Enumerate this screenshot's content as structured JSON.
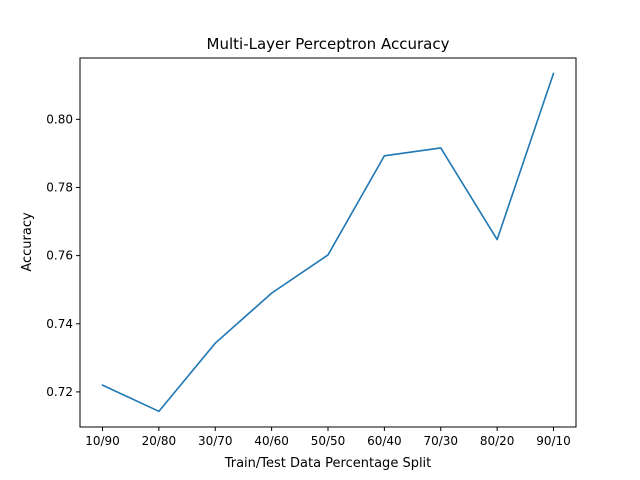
{
  "chart_data": {
    "type": "line",
    "title": "Multi-Layer Perceptron Accuracy",
    "xlabel": "Train/Test Data Percentage Split",
    "ylabel": "Accuracy",
    "categories": [
      "10/90",
      "20/80",
      "30/70",
      "40/60",
      "50/50",
      "60/40",
      "70/30",
      "80/20",
      "90/10"
    ],
    "series": [
      {
        "values": [
          0.722,
          0.7143,
          0.7343,
          0.749,
          0.7602,
          0.7893,
          0.7916,
          0.7647,
          0.8135
        ],
        "color": "#1f77b4"
      }
    ],
    "ylim": [
      0.7097,
      0.818
    ],
    "yticks": [
      0.72,
      0.74,
      0.76,
      0.78,
      0.8
    ],
    "ytick_labels": [
      "0.72",
      "0.74",
      "0.76",
      "0.78",
      "0.80"
    ],
    "grid": false,
    "legend": "none"
  }
}
